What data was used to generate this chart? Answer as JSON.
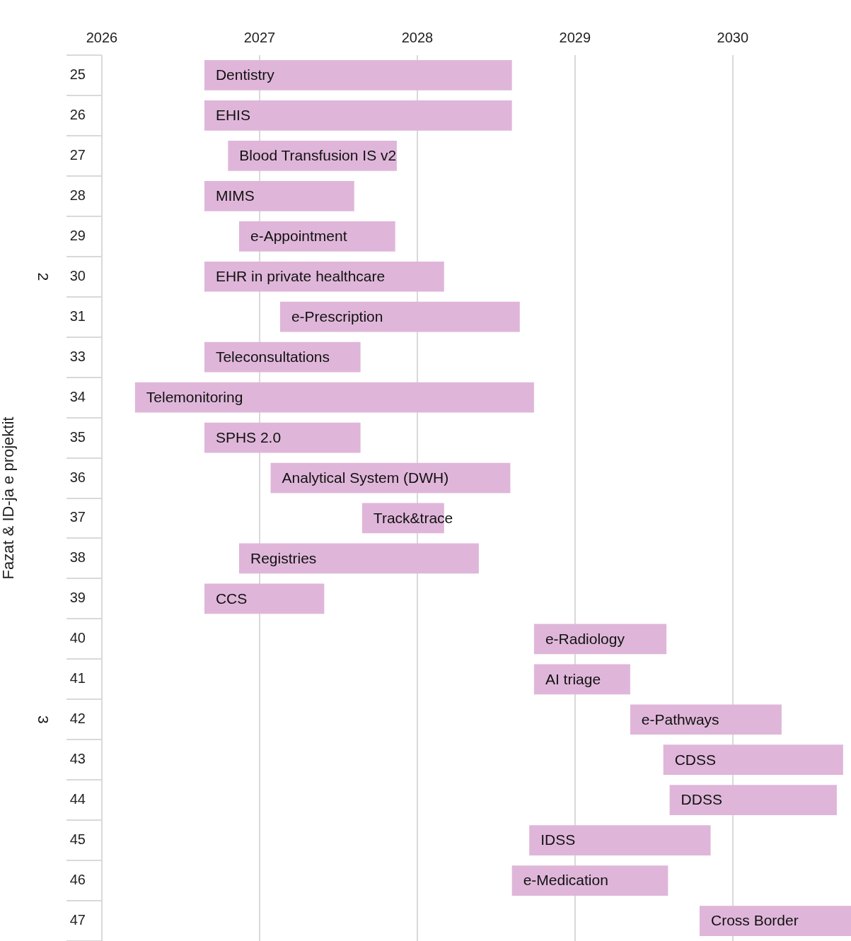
{
  "chart_data": {
    "type": "bar",
    "orientation": "horizontal",
    "ylabel": "Fazat & ID-ja e projektit",
    "categories": [
      "25",
      "26",
      "27",
      "28",
      "29",
      "30",
      "31",
      "33",
      "34",
      "35",
      "36",
      "37",
      "38",
      "39",
      "40",
      "41",
      "42",
      "43",
      "44",
      "45",
      "46",
      "47"
    ],
    "base": [
      2026.65,
      2026.65,
      2026.8,
      2026.65,
      2026.87,
      2026.65,
      2027.13,
      2026.65,
      2026.21,
      2026.65,
      2027.07,
      2027.65,
      2026.87,
      2026.65,
      2028.74,
      2028.74,
      2029.35,
      2029.56,
      2029.6,
      2028.71,
      2028.6,
      2029.79
    ],
    "values": [
      1.95,
      1.95,
      1.07,
      0.95,
      0.99,
      1.52,
      1.52,
      0.99,
      2.53,
      0.99,
      1.52,
      0.52,
      1.52,
      0.76,
      0.84,
      0.61,
      0.96,
      1.14,
      1.06,
      1.15,
      0.99,
      0.96
    ],
    "color": "#dfb6d9",
    "xlim": [
      2026,
      2030.75
    ],
    "xticks": [
      2026,
      2027,
      2028,
      2029,
      2030
    ],
    "grid": "x",
    "legend": false,
    "annotations": [
      {
        "text": "Dentistry",
        "x": 2026.65,
        "y": "25"
      },
      {
        "text": "EHIS",
        "x": 2026.65,
        "y": "26"
      },
      {
        "text": "Blood Transfusion IS v2",
        "x": 2026.8,
        "y": "27"
      },
      {
        "text": "MIMS",
        "x": 2026.65,
        "y": "28"
      },
      {
        "text": "e-Appointment",
        "x": 2026.87,
        "y": "29"
      },
      {
        "text": "EHR in private healthcare",
        "x": 2026.65,
        "y": "30"
      },
      {
        "text": "e-Prescription",
        "x": 2027.13,
        "y": "31"
      },
      {
        "text": "Teleconsultations",
        "x": 2026.65,
        "y": "33"
      },
      {
        "text": "Telemonitoring",
        "x": 2026.21,
        "y": "34"
      },
      {
        "text": "SPHS 2.0",
        "x": 2026.65,
        "y": "35"
      },
      {
        "text": "Analytical System (DWH)",
        "x": 2027.07,
        "y": "36"
      },
      {
        "text": "Track&trace",
        "x": 2027.65,
        "y": "37"
      },
      {
        "text": "Registries",
        "x": 2026.87,
        "y": "38"
      },
      {
        "text": "CCS",
        "x": 2026.65,
        "y": "39"
      },
      {
        "text": "e-Radiology",
        "x": 2028.74,
        "y": "40"
      },
      {
        "text": "AI triage",
        "x": 2028.74,
        "y": "41"
      },
      {
        "text": "e-Pathways",
        "x": 2029.35,
        "y": "42"
      },
      {
        "text": "CDSS",
        "x": 2029.56,
        "y": "43"
      },
      {
        "text": "DDSS",
        "x": 2029.6,
        "y": "44"
      },
      {
        "text": "IDSS",
        "x": 2028.71,
        "y": "45"
      },
      {
        "text": "e-Medication",
        "x": 2028.6,
        "y": "46"
      },
      {
        "text": "Cross Border",
        "x": 2029.79,
        "y": "47"
      },
      "2",
      "3"
    ]
  }
}
